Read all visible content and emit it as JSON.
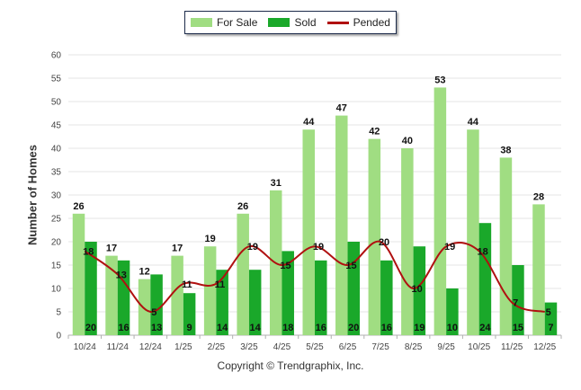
{
  "chart_data": {
    "type": "bar",
    "ylabel": "Number of Homes",
    "xlabel": "",
    "ylim": [
      0,
      60
    ],
    "yticks": [
      0,
      5,
      10,
      15,
      20,
      25,
      30,
      35,
      40,
      45,
      50,
      55,
      60
    ],
    "grid": true,
    "legend_position": "top-center",
    "categories": [
      "10/24",
      "11/24",
      "12/24",
      "1/25",
      "2/25",
      "3/25",
      "4/25",
      "5/25",
      "6/25",
      "7/25",
      "8/25",
      "9/25",
      "10/25",
      "11/25",
      "12/25"
    ],
    "series": [
      {
        "name": "For Sale",
        "type": "bar",
        "color": "#a0dd82",
        "values": [
          26,
          17,
          12,
          17,
          19,
          26,
          31,
          44,
          47,
          42,
          40,
          53,
          44,
          38,
          28
        ]
      },
      {
        "name": "Sold",
        "type": "bar",
        "color": "#1aa82a",
        "values": [
          20,
          16,
          13,
          9,
          14,
          14,
          18,
          16,
          20,
          16,
          19,
          10,
          24,
          15,
          7
        ]
      },
      {
        "name": "Pended",
        "type": "line",
        "color": "#b01010",
        "values": [
          18,
          13,
          5,
          11,
          11,
          19,
          15,
          19,
          15,
          20,
          10,
          19,
          18,
          7,
          5
        ]
      }
    ]
  },
  "footer": {
    "copyright": "Copyright © Trendgraphix, Inc."
  }
}
